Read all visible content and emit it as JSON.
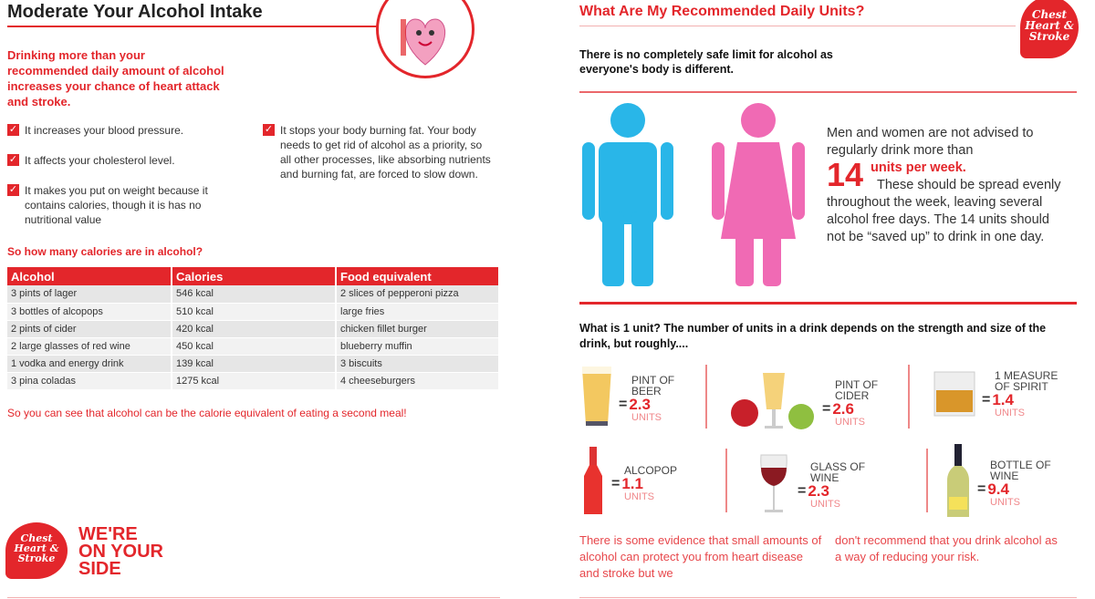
{
  "left": {
    "title": "Moderate Your Alcohol Intake",
    "intro": "Drinking more than your recommended daily amount of alcohol increases your chance of heart attack and stroke.",
    "bullets_left": [
      "It increases your blood pressure.",
      "It affects your cholesterol level.",
      "It makes you put on weight because it contains calories, though it is has no nutritional value"
    ],
    "bullets_right": [
      "It stops your body burning fat. Your body needs to get rid of alcohol as a priority, so all other processes, like absorbing nutrients and burning fat, are forced to slow down."
    ],
    "table_heading": "So how many calories are in alcohol?",
    "table": {
      "headers": [
        "Alcohol",
        "Calories",
        "Food equivalent"
      ],
      "rows": [
        [
          "3 pints of lager",
          "546 kcal",
          "2 slices of pepperoni pizza"
        ],
        [
          "3 bottles of alcopops",
          "510 kcal",
          "large fries"
        ],
        [
          "2 pints of cider",
          "420 kcal",
          "chicken fillet burger"
        ],
        [
          "2 large glasses of red wine",
          "450 kcal",
          "blueberry muffin"
        ],
        [
          "1 vodka and energy drink",
          "139 kcal",
          "3 biscuits"
        ],
        [
          "3 pina coladas",
          "1275 kcal",
          "4 cheeseburgers"
        ]
      ]
    },
    "conclusion": "So you can see that alcohol can be the calorie equivalent of eating a second meal!",
    "logo_text": "Chest Heart & Stroke",
    "slogan": [
      "WE'RE",
      "ON YOUR",
      "SIDE"
    ]
  },
  "right": {
    "title": "What Are My Recommended Daily Units?",
    "logo_text": "Chest Heart & Stroke",
    "safe_limit": "There is no completely safe limit for alcohol as everyone's body is different.",
    "advice_1": "Men and women are not advised to regularly drink more than",
    "advice_num": "14",
    "advice_units": "units per week.",
    "advice_2": "These should be spread evenly throughout the week, leaving several alcohol free days. The 14 units should not be “saved up” to drink in one day.",
    "unit_intro": "What is 1 unit? The number of units in a drink depends on the strength and size of the drink, but roughly....",
    "drinks": [
      {
        "label": "PINT OF BEER",
        "value": "2.3",
        "units": "UNITS",
        "icon": "beer-glass"
      },
      {
        "label": "PINT OF CIDER",
        "value": "2.6",
        "units": "UNITS",
        "icon": "cider-glass"
      },
      {
        "label": "1 MEASURE OF SPIRIT",
        "value": "1.4",
        "units": "UNITS",
        "icon": "spirit-glass"
      },
      {
        "label": "ALCOPOP",
        "value": "1.1",
        "units": "UNITS",
        "icon": "alcopop-bottle"
      },
      {
        "label": "GLASS OF WINE",
        "value": "2.3",
        "units": "UNITS",
        "icon": "wine-glass"
      },
      {
        "label": "BOTTLE OF WINE",
        "value": "9.4",
        "units": "UNITS",
        "icon": "wine-bottle"
      }
    ],
    "footer_1": "There is some evidence that small amounts of alcohol can protect you from heart disease and stroke but we",
    "footer_2": "don't recommend that you drink alcohol as a way of reducing your risk.",
    "equals": "="
  },
  "colors": {
    "accent": "#e3262b",
    "man": "#29b6e8",
    "woman": "#f06ab4"
  }
}
